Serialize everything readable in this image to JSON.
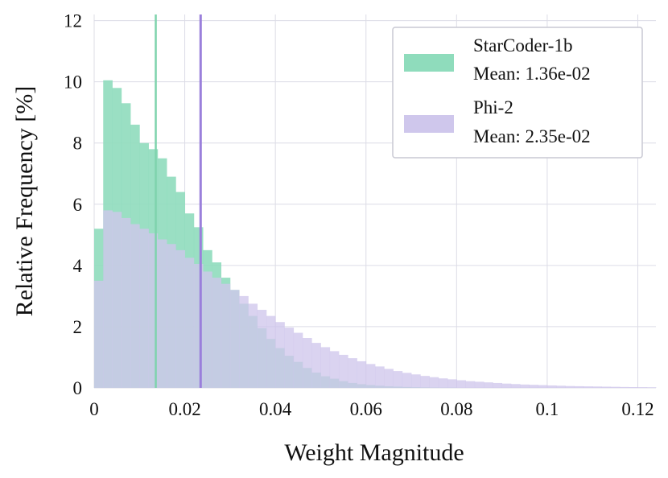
{
  "chart_data": {
    "type": "histogram",
    "xlabel": "Weight Magnitude",
    "ylabel": "Relative Frequency [%]",
    "xlim": [
      0,
      0.124
    ],
    "ylim": [
      0,
      12.2
    ],
    "grid": true,
    "legend_position": "top-right",
    "bin_width": 0.002,
    "x_ticks": [
      0,
      0.02,
      0.04,
      0.06,
      0.08,
      0.1,
      0.12
    ],
    "x_tick_labels": [
      "0",
      "0.02",
      "0.04",
      "0.06",
      "0.08",
      "0.1",
      "0.12"
    ],
    "y_ticks": [
      0,
      2,
      4,
      6,
      8,
      10,
      12
    ],
    "y_tick_labels": [
      "0",
      "2",
      "4",
      "6",
      "8",
      "10",
      "12"
    ],
    "series": [
      {
        "name": "StarCoder-1b",
        "legend_mean": "Mean: 1.36e-02",
        "mean": 0.0136,
        "color": "#8fdcbc",
        "mean_line_color": "#7fd3ad",
        "values": [
          5.2,
          10.05,
          9.8,
          9.3,
          8.6,
          8.0,
          7.8,
          7.5,
          6.9,
          6.4,
          5.7,
          5.25,
          4.5,
          4.1,
          3.6,
          3.2,
          2.75,
          2.35,
          1.95,
          1.6,
          1.3,
          1.05,
          0.85,
          0.65,
          0.5,
          0.38,
          0.3,
          0.22,
          0.16,
          0.12,
          0.09,
          0.07,
          0.05,
          0.04,
          0.03,
          0.02,
          0.015,
          0.01,
          0.008,
          0.006
        ]
      },
      {
        "name": "Phi-2",
        "legend_mean": "Mean: 2.35e-02",
        "mean": 0.0235,
        "color": "#cfc7ec",
        "mean_line_color": "#9a7fdb",
        "values": [
          3.5,
          5.8,
          5.75,
          5.55,
          5.35,
          5.2,
          5.05,
          4.85,
          4.7,
          4.5,
          4.25,
          4.05,
          3.8,
          3.6,
          3.4,
          3.2,
          3.0,
          2.75,
          2.55,
          2.35,
          2.15,
          1.97,
          1.8,
          1.63,
          1.47,
          1.33,
          1.2,
          1.08,
          0.97,
          0.87,
          0.78,
          0.7,
          0.62,
          0.55,
          0.49,
          0.44,
          0.39,
          0.35,
          0.31,
          0.28,
          0.25,
          0.22,
          0.2,
          0.18,
          0.16,
          0.14,
          0.125,
          0.11,
          0.1,
          0.09,
          0.08,
          0.07,
          0.06,
          0.055,
          0.05,
          0.045,
          0.04,
          0.035,
          0.03,
          0.026,
          0.023,
          0.02
        ]
      }
    ]
  }
}
